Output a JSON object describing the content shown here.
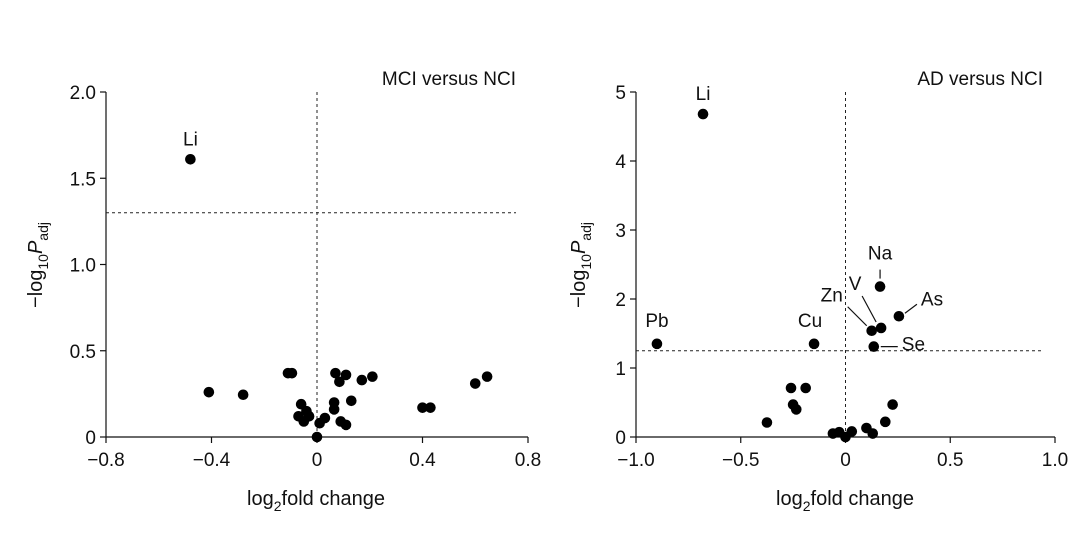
{
  "chart_data": [
    {
      "type": "scatter",
      "title": "MCI versus NCI",
      "xlabel": {
        "main": "log",
        "sub": "2",
        "rest": "fold change"
      },
      "ylabel": {
        "pre": "−log",
        "sub1": "10",
        "var": "P",
        "sub2": "adj"
      },
      "xlim": [
        -0.8,
        0.8
      ],
      "ylim": [
        0,
        2.0
      ],
      "xticks": [
        -0.8,
        -0.4,
        0,
        0.4,
        0.8
      ],
      "xtick_labels": [
        "−0.8",
        "−0.4",
        "0",
        "0.4",
        "0.8"
      ],
      "yticks": [
        0,
        0.5,
        1.0,
        1.5,
        2.0
      ],
      "ytick_labels": [
        "0",
        "0.5",
        "1.0",
        "1.5",
        "2.0"
      ],
      "threshold_y": 1.3,
      "threshold_x": 0,
      "points": [
        {
          "x": -0.48,
          "y": 1.61,
          "label": "Li"
        },
        {
          "x": -0.41,
          "y": 0.26
        },
        {
          "x": -0.28,
          "y": 0.245
        },
        {
          "x": -0.11,
          "y": 0.37
        },
        {
          "x": -0.095,
          "y": 0.37
        },
        {
          "x": -0.06,
          "y": 0.19
        },
        {
          "x": -0.04,
          "y": 0.15
        },
        {
          "x": -0.07,
          "y": 0.12
        },
        {
          "x": -0.05,
          "y": 0.09
        },
        {
          "x": -0.03,
          "y": 0.12
        },
        {
          "x": 0.0,
          "y": 0.0
        },
        {
          "x": 0.01,
          "y": 0.08
        },
        {
          "x": 0.03,
          "y": 0.11
        },
        {
          "x": 0.065,
          "y": 0.16
        },
        {
          "x": 0.065,
          "y": 0.2
        },
        {
          "x": 0.07,
          "y": 0.37
        },
        {
          "x": 0.085,
          "y": 0.32
        },
        {
          "x": 0.09,
          "y": 0.09
        },
        {
          "x": 0.11,
          "y": 0.07
        },
        {
          "x": 0.11,
          "y": 0.36
        },
        {
          "x": 0.13,
          "y": 0.21
        },
        {
          "x": 0.17,
          "y": 0.33
        },
        {
          "x": 0.21,
          "y": 0.35
        },
        {
          "x": 0.4,
          "y": 0.17
        },
        {
          "x": 0.43,
          "y": 0.17
        },
        {
          "x": 0.6,
          "y": 0.31
        },
        {
          "x": 0.645,
          "y": 0.35
        }
      ]
    },
    {
      "type": "scatter",
      "title": "AD versus NCI",
      "xlabel": {
        "main": "log",
        "sub": "2",
        "rest": "fold change"
      },
      "ylabel": {
        "pre": "−log",
        "sub1": "10",
        "var": "P",
        "sub2": "adj"
      },
      "xlim": [
        -1.0,
        1.0
      ],
      "ylim": [
        0,
        5
      ],
      "xticks": [
        -1.0,
        -0.5,
        0,
        0.5,
        1.0
      ],
      "xtick_labels": [
        "−1.0",
        "−0.5",
        "0",
        "0.5",
        "1.0"
      ],
      "yticks": [
        0,
        1,
        2,
        3,
        4,
        5
      ],
      "ytick_labels": [
        "0",
        "1",
        "2",
        "3",
        "4",
        "5"
      ],
      "threshold_y": 1.25,
      "threshold_x": 0,
      "points": [
        {
          "x": -0.68,
          "y": 4.68,
          "label": "Li"
        },
        {
          "x": -0.9,
          "y": 1.35,
          "label": "Pb"
        },
        {
          "x": -0.15,
          "y": 1.35,
          "label": "Cu"
        },
        {
          "x": 0.165,
          "y": 2.18,
          "label": "Na"
        },
        {
          "x": 0.255,
          "y": 1.75,
          "label": "As"
        },
        {
          "x": 0.17,
          "y": 1.58,
          "label": "V"
        },
        {
          "x": 0.125,
          "y": 1.54,
          "label": "Zn"
        },
        {
          "x": 0.135,
          "y": 1.31,
          "label": "Se"
        },
        {
          "x": -0.375,
          "y": 0.21
        },
        {
          "x": -0.26,
          "y": 0.71
        },
        {
          "x": -0.19,
          "y": 0.71
        },
        {
          "x": -0.25,
          "y": 0.47
        },
        {
          "x": -0.235,
          "y": 0.4
        },
        {
          "x": -0.06,
          "y": 0.05
        },
        {
          "x": -0.03,
          "y": 0.07
        },
        {
          "x": 0.0,
          "y": 0.0
        },
        {
          "x": 0.03,
          "y": 0.08
        },
        {
          "x": 0.1,
          "y": 0.13
        },
        {
          "x": 0.13,
          "y": 0.05
        },
        {
          "x": 0.19,
          "y": 0.22
        },
        {
          "x": 0.225,
          "y": 0.47
        }
      ]
    }
  ]
}
